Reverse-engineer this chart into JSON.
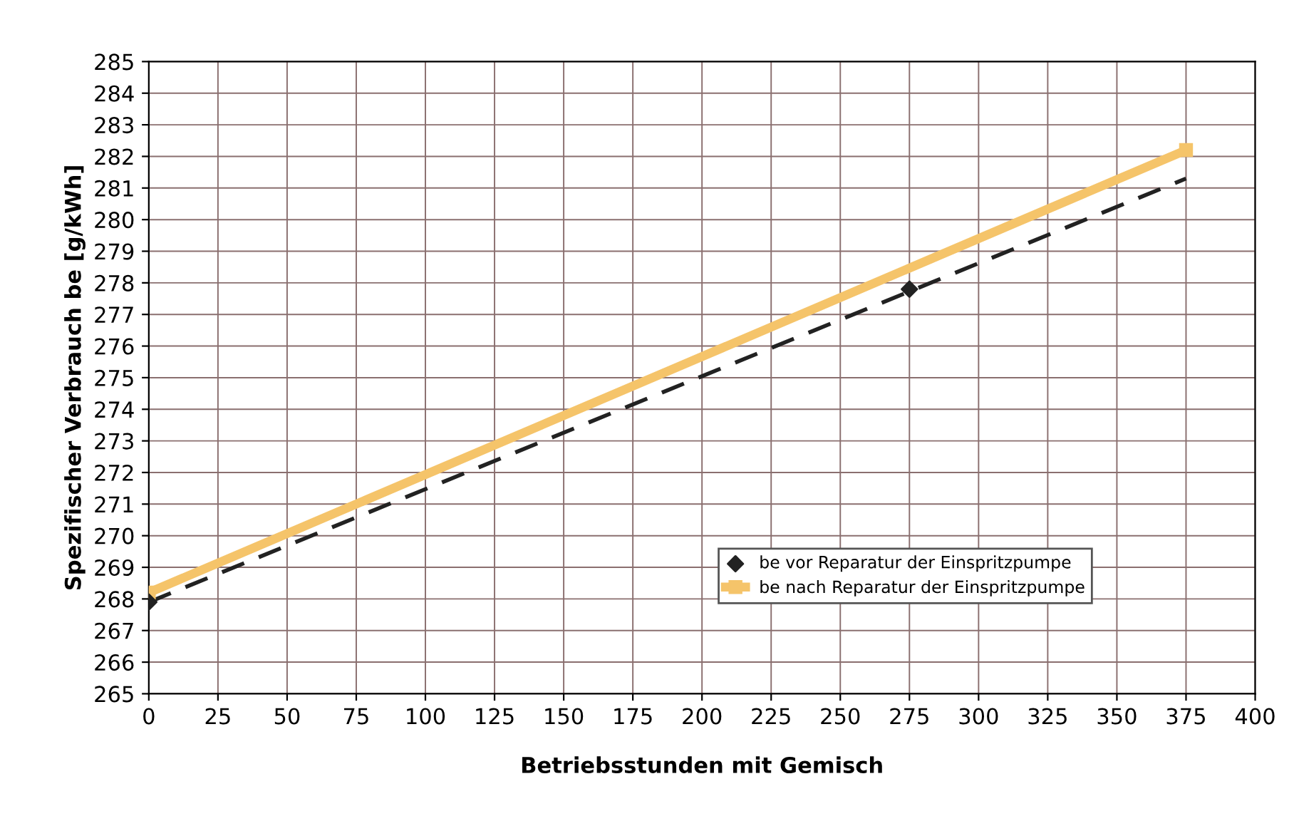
{
  "chart_data": {
    "type": "line",
    "xlabel": "Betriebsstunden mit Gemisch",
    "ylabel": "Spezifischer Verbrauch be [g/kWh]",
    "xlim": [
      0,
      400
    ],
    "xticks": [
      0,
      25,
      50,
      75,
      100,
      125,
      150,
      175,
      200,
      225,
      250,
      275,
      300,
      325,
      350,
      375,
      400
    ],
    "ylim": [
      265,
      285
    ],
    "yticks": [
      265,
      266,
      267,
      268,
      269,
      270,
      271,
      272,
      273,
      274,
      275,
      276,
      277,
      278,
      279,
      280,
      281,
      282,
      283,
      284,
      285
    ],
    "grid": true,
    "legend": "lower right",
    "series": [
      {
        "name": "be vor Reparatur der Einspritzpumpe",
        "type": "scatter",
        "color": "#222222",
        "marker": "diamond",
        "x": [
          0,
          275
        ],
        "values": [
          267.9,
          277.8
        ]
      },
      {
        "color": "#222222",
        "line_style": "dashed",
        "marker": "none",
        "x": [
          0,
          375
        ],
        "values": [
          267.9,
          281.3
        ]
      },
      {
        "name": "be nach Reparatur der Einspritzpumpe",
        "color": "#f5c46a",
        "line_style": "solid",
        "marker": "square",
        "x": [
          0,
          375
        ],
        "values": [
          268.2,
          282.2
        ]
      }
    ]
  }
}
